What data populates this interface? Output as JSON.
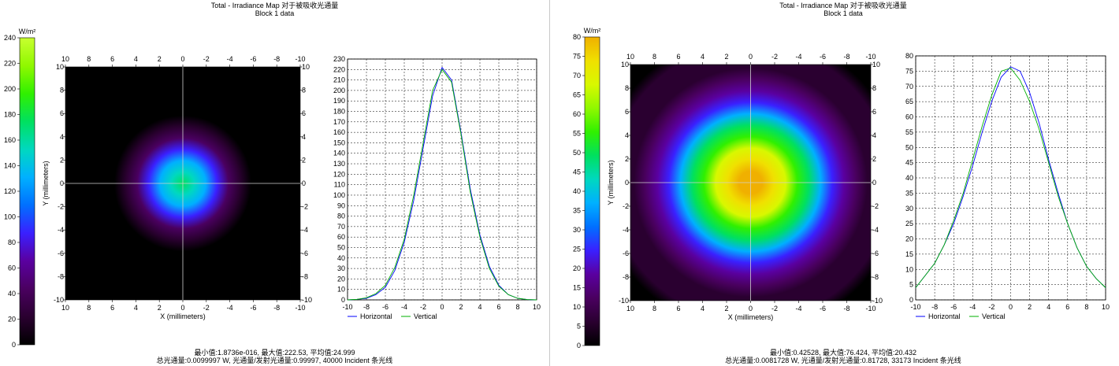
{
  "panels": [
    {
      "title": "Total - Irradiance Map 对于被吸收光通量",
      "subtitle": "Block 1 data",
      "stats_line1": "最小值:1.8736e-016, 最大值:222.53, 平均值:24.999",
      "stats_line2": "总光通量:0.0099997 W, 光通量/发射光通量:0.99997, 40000 Incident 条光线",
      "colorbar": {
        "unit": "W/m²",
        "ticks": [
          0,
          20,
          40,
          60,
          80,
          100,
          120,
          140,
          160,
          180,
          200,
          220,
          240
        ],
        "min": 0,
        "max": 240,
        "gradient": [
          "#000000",
          "#2a0030",
          "#4a0060",
          "#5a00a0",
          "#3a20ff",
          "#0070ff",
          "#00b0ff",
          "#00d8c0",
          "#00e060",
          "#30f000",
          "#90f800",
          "#c8ff30"
        ]
      },
      "heatmap": {
        "xlabel": "X (millimeters)",
        "ylabel": "Y (millimeters)",
        "x_ticks": [
          "10",
          "8",
          "6",
          "4",
          "2",
          "0",
          "-2",
          "-4",
          "-6",
          "-8",
          "-10"
        ],
        "y_ticks": [
          "10",
          "8",
          "6",
          "4",
          "2",
          "0",
          "-2",
          "-4",
          "-6",
          "-8",
          "-10"
        ],
        "center": [
          0,
          0
        ],
        "sigma_mm": 2.45,
        "peak_color": "#00e060"
      }
    },
    {
      "title": "Total - Irradiance Map 对于被吸收光通量",
      "subtitle": "Block 1 data",
      "stats_line1": "最小值:0.42528, 最大值:76.424, 平均值:20.432",
      "stats_line2": "总光通量:0.0081728 W, 光通量/发射光通量:0.81728, 33173 Incident 条光线",
      "colorbar": {
        "unit": "W/m²",
        "ticks": [
          0,
          5,
          10,
          15,
          20,
          25,
          30,
          35,
          40,
          45,
          50,
          55,
          60,
          65,
          70,
          75,
          80
        ],
        "min": 0,
        "max": 80,
        "gradient": [
          "#000000",
          "#2a0030",
          "#4a0060",
          "#5a00a0",
          "#3a20ff",
          "#0070ff",
          "#00b0ff",
          "#00d8c0",
          "#00e060",
          "#30f000",
          "#90f800",
          "#d8f800",
          "#f0e000",
          "#f0b000"
        ]
      },
      "heatmap": {
        "xlabel": "X (millimeters)",
        "ylabel": "Y (millimeters)",
        "x_ticks": [
          "10",
          "8",
          "6",
          "4",
          "2",
          "0",
          "-2",
          "-4",
          "-6",
          "-8",
          "-10"
        ],
        "y_ticks": [
          "10",
          "8",
          "6",
          "4",
          "2",
          "0",
          "-2",
          "-4",
          "-6",
          "-8",
          "-10"
        ],
        "center": [
          0,
          0
        ],
        "sigma_mm": 4.6,
        "peak_color": "#f0b000"
      }
    }
  ],
  "chart_data": [
    {
      "type": "line",
      "x": [
        -10,
        -9,
        -8,
        -7,
        -6,
        -5,
        -4,
        -3,
        -2,
        -1,
        0,
        1,
        2,
        3,
        4,
        5,
        6,
        7,
        8,
        9,
        10
      ],
      "series": [
        {
          "name": "Horizontal",
          "color": "#0000ff",
          "values": [
            0,
            0.5,
            1.5,
            5,
            12,
            28,
            55,
            95,
            145,
            195,
            222,
            210,
            160,
            105,
            62,
            32,
            14,
            5,
            1.5,
            0.3,
            0
          ]
        },
        {
          "name": "Vertical",
          "color": "#00b000",
          "values": [
            0,
            0.5,
            2,
            6,
            14,
            31,
            58,
            100,
            150,
            200,
            220,
            208,
            158,
            102,
            60,
            30,
            13,
            5,
            1.5,
            0.3,
            0
          ]
        }
      ],
      "xlim": [
        -10,
        10
      ],
      "ylim": [
        0,
        230
      ],
      "x_ticks": [
        -10,
        -8,
        -6,
        -4,
        -2,
        0,
        2,
        4,
        6,
        8,
        10
      ],
      "y_ticks": [
        0,
        10,
        20,
        30,
        40,
        50,
        60,
        70,
        80,
        90,
        100,
        110,
        120,
        130,
        140,
        150,
        160,
        170,
        180,
        190,
        200,
        210,
        220,
        230
      ],
      "grid": true,
      "legend": "bottom"
    },
    {
      "type": "line",
      "x": [
        -10,
        -9,
        -8,
        -7,
        -6,
        -5,
        -4,
        -3,
        -2,
        -1,
        0,
        1,
        2,
        3,
        4,
        5,
        6,
        7,
        8,
        9,
        10
      ],
      "series": [
        {
          "name": "Horizontal",
          "color": "#0000ff",
          "values": [
            4,
            8,
            12,
            18,
            25,
            34,
            44,
            55,
            65,
            73,
            76.4,
            75,
            68,
            58,
            46,
            35,
            25,
            17,
            11,
            7,
            4
          ]
        },
        {
          "name": "Vertical",
          "color": "#00b000",
          "values": [
            4,
            8,
            12,
            18,
            26,
            35,
            46,
            57,
            67,
            75,
            76,
            72,
            65,
            56,
            45,
            34,
            25,
            17,
            11,
            7,
            4
          ]
        }
      ],
      "xlim": [
        -10,
        10
      ],
      "ylim": [
        0,
        80
      ],
      "x_ticks": [
        -10,
        -8,
        -6,
        -4,
        -2,
        0,
        2,
        4,
        6,
        8,
        10
      ],
      "y_ticks": [
        0,
        5,
        10,
        15,
        20,
        25,
        30,
        35,
        40,
        45,
        50,
        55,
        60,
        65,
        70,
        75,
        80
      ],
      "grid": true,
      "legend": "bottom"
    }
  ]
}
